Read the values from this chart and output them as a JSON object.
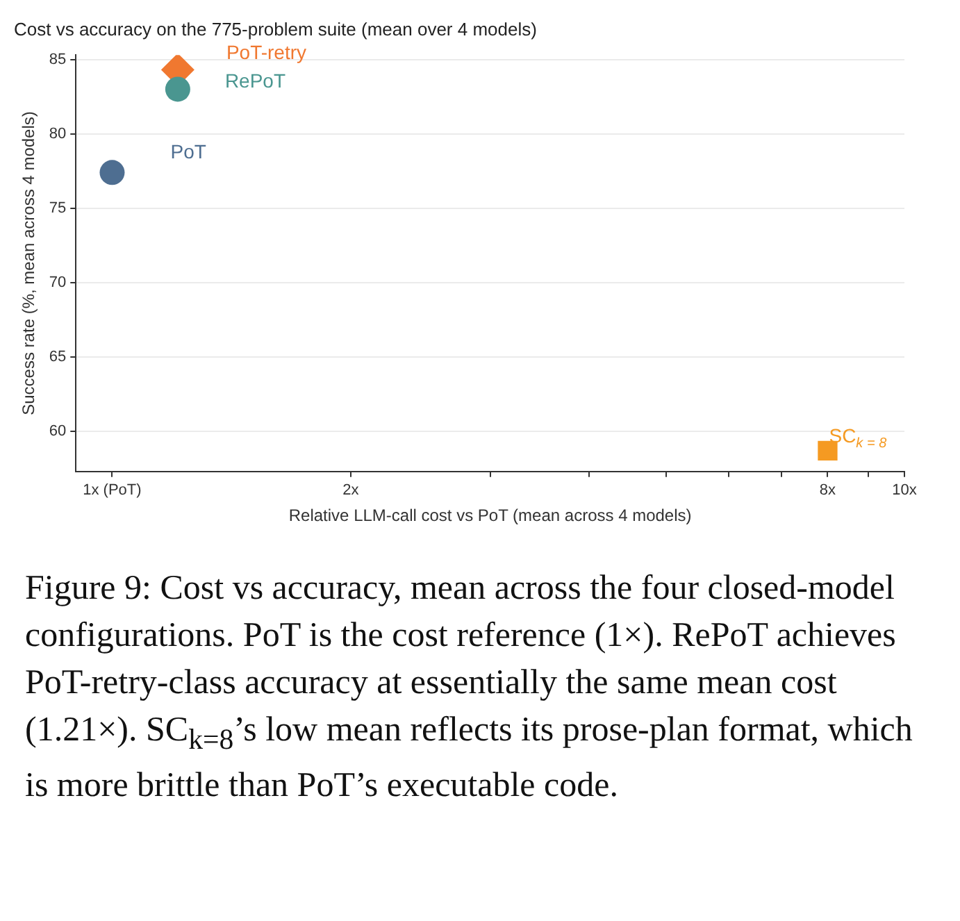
{
  "chart_data": {
    "type": "scatter",
    "title": "Cost vs accuracy on the 775-problem suite (mean over 4 models)",
    "xlabel": "Relative LLM-call cost vs PoT (mean across 4 models)",
    "ylabel": "Success rate (%, mean across 4 models)",
    "log": "x",
    "xlim": [
      0.9,
      10
    ],
    "ylim": [
      57.3,
      85.3
    ],
    "xticks": [
      {
        "value": 1,
        "label": "1x (PoT)"
      },
      {
        "value": 2,
        "label": "2x"
      },
      {
        "value": 3,
        "label": null
      },
      {
        "value": 4,
        "label": null
      },
      {
        "value": 5,
        "label": null
      },
      {
        "value": 6,
        "label": null
      },
      {
        "value": 7,
        "label": null
      },
      {
        "value": 8,
        "label": "8x"
      },
      {
        "value": 9,
        "label": null
      },
      {
        "value": 10,
        "label": "10x"
      }
    ],
    "yticks": [
      60,
      65,
      70,
      75,
      80,
      85
    ],
    "grid": "y",
    "legend": false,
    "series": [
      {
        "name": "PoT",
        "color": "#4e6e91",
        "x": [
          1
        ],
        "values": [
          77.4
        ],
        "marker": "circle"
      },
      {
        "name": "RePoT",
        "color": "#4a9690",
        "x": [
          1.21
        ],
        "values": [
          83.0
        ],
        "marker": "circle"
      },
      {
        "name": "PoT-retry",
        "color": "#f07830",
        "x": [
          1.21
        ],
        "values": [
          84.3
        ],
        "marker": "diamond"
      },
      {
        "name": "SC$_{k = 8}$",
        "color": "#f59a22",
        "x": [
          8
        ],
        "values": [
          58.7
        ],
        "marker": "square"
      }
    ],
    "annotations": [
      "Figure 9: Cost vs accuracy, mean across the four closed-model configurations. PoT is the cost reference (1×). RePoT achieves PoT-retry-class accuracy at essentially the same mean cost (1.21×). SC$_{k=8}$’s low mean reflects its prose-plan format, which is more brittle than PoT’s executable code."
    ]
  }
}
